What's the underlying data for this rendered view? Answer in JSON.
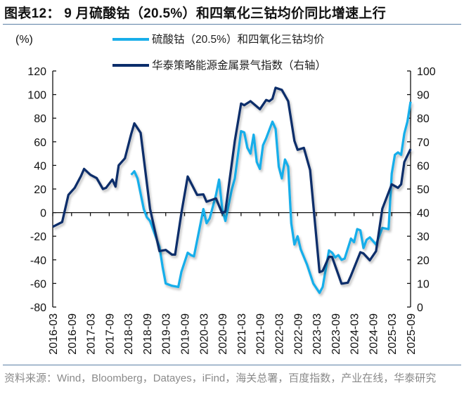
{
  "title": "图表12：  9 月硫酸钴（20.5%）和四氧化三钴均价同比增速上行",
  "source": "资料来源：Wind，Bloomberg，Datayes，iFind，海关总署，百度指数，产业在线，华泰研究",
  "chart_data": {
    "type": "line",
    "title": "图表12：  9 月硫酸钴（20.5%）和四氧化三钴均价同比增速上行",
    "ylabel": "(%)",
    "ylim": [
      -80,
      120
    ],
    "yticks": [
      120,
      100,
      80,
      60,
      40,
      20,
      0,
      -20,
      -40,
      -60,
      -80
    ],
    "y2lim": [
      0,
      100
    ],
    "y2ticks": [
      100,
      90,
      80,
      70,
      60,
      50,
      40,
      30,
      20,
      10,
      0
    ],
    "xticks": [
      "2016-03",
      "2016-09",
      "2017-03",
      "2017-09",
      "2018-03",
      "2018-09",
      "2019-03",
      "2019-09",
      "2020-03",
      "2020-09",
      "2021-03",
      "2021-09",
      "2022-03",
      "2022-09",
      "2023-03",
      "2023-09",
      "2024-03",
      "2024-09",
      "2025-03",
      "2025-09"
    ],
    "grid": false,
    "legend": "top-center",
    "series": [
      {
        "name": "硫酸钴（20.5%）和四氧化三钴均价",
        "axis": "left",
        "color": "#19AEEA",
        "points": [
          [
            "2018-04",
            32
          ],
          [
            "2018-05",
            35
          ],
          [
            "2018-06",
            29
          ],
          [
            "2018-08",
            3
          ],
          [
            "2018-09",
            -4
          ],
          [
            "2018-10",
            -7
          ],
          [
            "2019-01",
            -29
          ],
          [
            "2019-02",
            -46
          ],
          [
            "2019-03",
            -60
          ],
          [
            "2019-05",
            -62
          ],
          [
            "2019-07",
            -63
          ],
          [
            "2019-08",
            -50
          ],
          [
            "2019-10",
            -34
          ],
          [
            "2019-11",
            -36
          ],
          [
            "2019-12",
            -37
          ],
          [
            "2020-03",
            3
          ],
          [
            "2020-04",
            -9
          ],
          [
            "2020-05",
            -5
          ],
          [
            "2020-07",
            15
          ],
          [
            "2020-08",
            28
          ],
          [
            "2020-09",
            3
          ],
          [
            "2020-10",
            -7
          ],
          [
            "2020-12",
            19
          ],
          [
            "2021-01",
            29
          ],
          [
            "2021-03",
            69
          ],
          [
            "2021-04",
            68
          ],
          [
            "2021-05",
            55
          ],
          [
            "2021-06",
            50
          ],
          [
            "2021-07",
            66
          ],
          [
            "2021-08",
            43
          ],
          [
            "2021-09",
            37
          ],
          [
            "2021-10",
            57
          ],
          [
            "2021-11",
            63
          ],
          [
            "2022-01",
            77
          ],
          [
            "2022-02",
            71
          ],
          [
            "2022-03",
            39
          ],
          [
            "2022-04",
            29
          ],
          [
            "2022-05",
            45
          ],
          [
            "2022-06",
            39
          ],
          [
            "2022-07",
            -9
          ],
          [
            "2022-08",
            -27
          ],
          [
            "2022-09",
            -20
          ],
          [
            "2022-10",
            -31
          ],
          [
            "2022-12",
            -44
          ],
          [
            "2023-02",
            -60
          ],
          [
            "2023-04",
            -68
          ],
          [
            "2023-05",
            -63
          ],
          [
            "2023-07",
            -32
          ],
          [
            "2023-08",
            -34
          ],
          [
            "2023-09",
            -38
          ],
          [
            "2023-10",
            -36
          ],
          [
            "2023-11",
            -40
          ],
          [
            "2023-12",
            -39
          ],
          [
            "2024-02",
            -22
          ],
          [
            "2024-03",
            -25
          ],
          [
            "2024-04",
            -14
          ],
          [
            "2024-05",
            -15
          ],
          [
            "2024-06",
            -30
          ],
          [
            "2024-07",
            -23
          ],
          [
            "2024-08",
            -21
          ],
          [
            "2024-10",
            -27
          ],
          [
            "2024-12",
            -13
          ],
          [
            "2025-02",
            -14
          ],
          [
            "2025-03",
            33
          ],
          [
            "2025-04",
            49
          ],
          [
            "2025-05",
            51
          ],
          [
            "2025-06",
            49
          ],
          [
            "2025-07",
            67
          ],
          [
            "2025-08",
            77
          ],
          [
            "2025-09",
            94
          ]
        ]
      },
      {
        "name": "华泰策略能源金属景气指数（右轴）",
        "axis": "right",
        "color": "#0B2D6B",
        "points": [
          [
            "2016-03",
            34
          ],
          [
            "2016-06",
            36
          ],
          [
            "2016-08",
            47.5
          ],
          [
            "2016-10",
            50.5
          ],
          [
            "2016-12",
            55.5
          ],
          [
            "2017-01",
            58.5
          ],
          [
            "2017-03",
            56
          ],
          [
            "2017-05",
            54.6
          ],
          [
            "2017-07",
            50
          ],
          [
            "2017-08",
            50.5
          ],
          [
            "2017-10",
            54
          ],
          [
            "2017-11",
            51
          ],
          [
            "2017-12",
            60
          ],
          [
            "2018-02",
            63
          ],
          [
            "2018-04",
            73.3
          ],
          [
            "2018-05",
            77.8
          ],
          [
            "2018-07",
            73.8
          ],
          [
            "2018-10",
            41.6
          ],
          [
            "2019-01",
            23.7
          ],
          [
            "2019-03",
            24.2
          ],
          [
            "2019-05",
            22.2
          ],
          [
            "2019-06",
            22.2
          ],
          [
            "2019-08",
            40
          ],
          [
            "2019-10",
            55.3
          ],
          [
            "2020-01",
            47.5
          ],
          [
            "2020-03",
            47.7
          ],
          [
            "2020-04",
            44.6
          ],
          [
            "2020-07",
            46
          ],
          [
            "2020-09",
            39.7
          ],
          [
            "2020-10",
            40.6
          ],
          [
            "2021-01",
            70.4
          ],
          [
            "2021-03",
            86.2
          ],
          [
            "2021-04",
            85.5
          ],
          [
            "2021-06",
            87.2
          ],
          [
            "2021-09",
            83.8
          ],
          [
            "2021-11",
            87.7
          ],
          [
            "2021-12",
            87.2
          ],
          [
            "2022-01",
            88.2
          ],
          [
            "2022-02",
            92.9
          ],
          [
            "2022-04",
            92
          ],
          [
            "2022-06",
            87.2
          ],
          [
            "2022-08",
            70.4
          ],
          [
            "2022-09",
            66.6
          ],
          [
            "2022-11",
            67.4
          ],
          [
            "2023-01",
            58
          ],
          [
            "2023-04",
            14.8
          ],
          [
            "2023-05",
            15.3
          ],
          [
            "2023-07",
            21.3
          ],
          [
            "2023-08",
            21.2
          ],
          [
            "2023-11",
            9.9
          ],
          [
            "2024-01",
            10.3
          ],
          [
            "2024-02",
            13.3
          ],
          [
            "2024-05",
            23.2
          ],
          [
            "2024-06",
            22.7
          ],
          [
            "2024-08",
            19.8
          ],
          [
            "2024-10",
            23.7
          ],
          [
            "2024-12",
            41.6
          ],
          [
            "2025-03",
            52
          ],
          [
            "2025-05",
            50.5
          ],
          [
            "2025-06",
            52
          ],
          [
            "2025-07",
            61.4
          ],
          [
            "2025-09",
            66.9
          ]
        ]
      }
    ]
  }
}
